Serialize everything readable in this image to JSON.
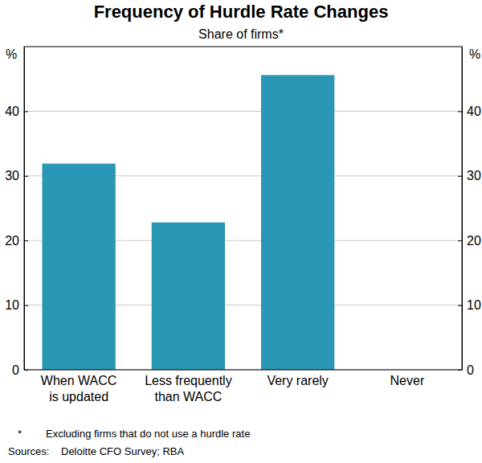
{
  "chart_data": {
    "type": "bar",
    "title": "Frequency of Hurdle Rate Changes",
    "subtitle": "Share of firms*",
    "unit": "%",
    "categories": [
      "When WACC\nis updated",
      "Less frequently\nthan WACC",
      "Very rarely",
      "Never"
    ],
    "values": [
      31.9,
      22.8,
      45.6,
      0
    ],
    "color": "#2a98b4",
    "ylim": [
      0,
      50
    ],
    "yticks": [
      0,
      10,
      20,
      30,
      40
    ],
    "grid": true,
    "footnote_marker": "*",
    "footnote": "Excluding firms that do not use a hurdle rate",
    "sources_label": "Sources:",
    "sources": "Deloitte CFO Survey; RBA"
  }
}
